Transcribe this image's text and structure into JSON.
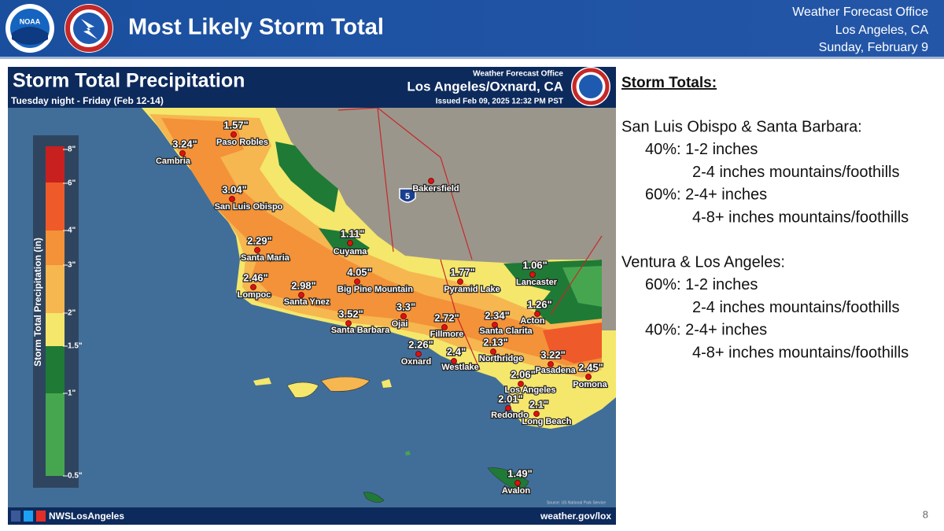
{
  "header": {
    "title": "Most Likely Storm Total",
    "office": [
      "Weather Forecast Office",
      "Los Angeles, CA",
      "Sunday, February 9"
    ]
  },
  "logo": "NOAA",
  "map": {
    "title": "Storm Total Precipitation",
    "subtitle": "Tuesday night - Friday (Feb 12-14)",
    "office": "Weather Forecast Office",
    "location": "Los Angeles/Oxnard, CA",
    "issued": "Issued Feb 09, 2025 12:32 PM PST",
    "legend_title": "Storm Total Precipitation (in)",
    "legend_labels": [
      "8\"",
      "6\"",
      "4\"",
      "3\"",
      "2\"",
      "1.5\"",
      "1\"",
      "0.5\""
    ],
    "cities": [
      {
        "name": "Paso Robles",
        "amount": "1.57\""
      },
      {
        "name": "Cambria",
        "amount": "3.24\""
      },
      {
        "name": "San Luis Obispo",
        "amount": "3.04\""
      },
      {
        "name": "Santa Maria",
        "amount": "2.29\""
      },
      {
        "name": "Cuyama",
        "amount": "1.11\""
      },
      {
        "name": "Lompoc",
        "amount": "2.46\""
      },
      {
        "name": "Santa Ynez",
        "amount": "2.98\""
      },
      {
        "name": "Big Pine Mountain",
        "amount": "4.05\""
      },
      {
        "name": "Santa Barbara",
        "amount": "3.52\""
      },
      {
        "name": "Ojai",
        "amount": "3.3\""
      },
      {
        "name": "Fillmore",
        "amount": "2.72\""
      },
      {
        "name": "Pyramid Lake",
        "amount": "1.77\""
      },
      {
        "name": "Santa Clarita",
        "amount": "2.34\""
      },
      {
        "name": "Lancaster",
        "amount": "1.06\""
      },
      {
        "name": "Acton",
        "amount": "1.26\""
      },
      {
        "name": "Oxnard",
        "amount": "2.26\""
      },
      {
        "name": "Westlake",
        "amount": "2.4\""
      },
      {
        "name": "Northridge",
        "amount": "2.13\""
      },
      {
        "name": "Pasadena",
        "amount": "3.22\""
      },
      {
        "name": "Pomona",
        "amount": "2.45\""
      },
      {
        "name": "Los Angeles",
        "amount": "2.06\""
      },
      {
        "name": "Redondo",
        "amount": "2.01\""
      },
      {
        "name": "Long Beach",
        "amount": "2.1\""
      },
      {
        "name": "Avalon",
        "amount": "1.49\""
      },
      {
        "name": "Bakersfield"
      }
    ],
    "interstate": "5",
    "source": "Source: US National Park Service",
    "social": "NWSLosAngeles",
    "url": "weather.gov/lox"
  },
  "panel": {
    "heading": "Storm Totals:",
    "sections": [
      {
        "region": "San Luis Obispo & Santa Barbara:",
        "lines": [
          "40%: 1-2 inches",
          "2-4 inches mountains/foothills",
          "60%: 2-4+ inches",
          "4-8+ inches mountains/foothills"
        ]
      },
      {
        "region": "Ventura & Los Angeles:",
        "lines": [
          "60%: 1-2 inches",
          "2-4 inches mountains/foothills",
          "40%: 2-4+ inches",
          "4-8+ inches mountains/foothills"
        ]
      }
    ]
  },
  "page_number": "8"
}
